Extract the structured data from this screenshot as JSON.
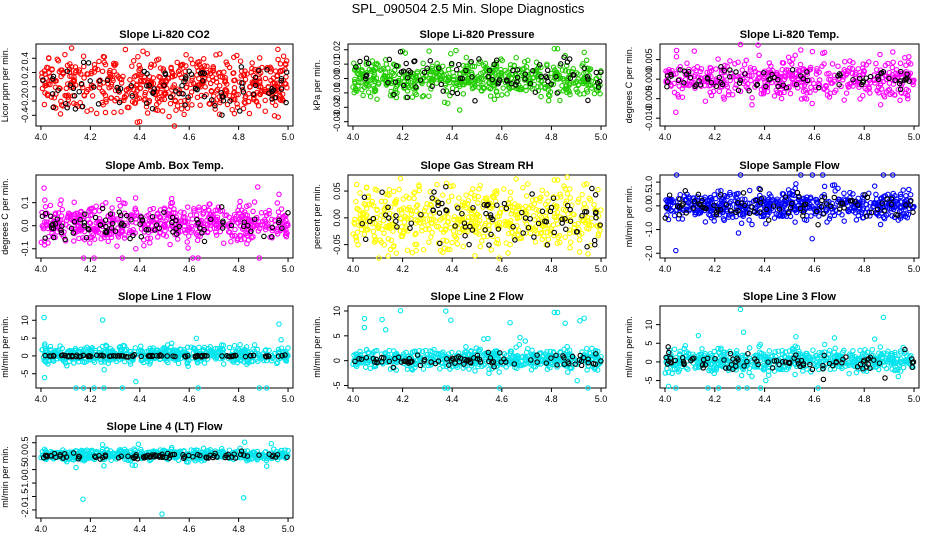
{
  "page": {
    "title": "SPL_090504  2.5 Min. Slope Diagnostics"
  },
  "palette": {
    "black": "#000000",
    "red": "#ff0000",
    "green": "#22cc00",
    "magenta": "#ff00ff",
    "yellow": "#ffff00",
    "blue": "#0000ff",
    "cyan": "#00e5ee"
  },
  "chart_data": [
    {
      "type": "scatter",
      "title": "Slope Li-820 CO2",
      "ylabel": "Licor ppm per min.",
      "xlim": [
        3.98,
        5.02
      ],
      "ylim": [
        -0.55,
        0.6
      ],
      "xticks": [
        "4.0",
        "4.2",
        "4.4",
        "4.6",
        "4.8",
        "5.0"
      ],
      "xtick_values": [
        4.0,
        4.2,
        4.4,
        4.6,
        4.8,
        5.0
      ],
      "yticks": [
        "-0.4",
        "-0.2",
        "0.0",
        "0.2",
        "0.4"
      ],
      "ytick_values": [
        -0.4,
        -0.2,
        0.0,
        0.2,
        0.4
      ],
      "grid": false,
      "series": [
        {
          "color": "#ff0000",
          "cloud": {
            "count": 560,
            "x_range": [
              4.0,
              5.0
            ],
            "center": 0.03,
            "spread": 0.2,
            "outlier_max": 0.52
          }
        },
        {
          "color": "#000000",
          "cloud": {
            "count": 90,
            "x_range": [
              4.0,
              5.0
            ],
            "center": 0.0,
            "spread": 0.17,
            "outlier_max": 0.55
          }
        }
      ]
    },
    {
      "type": "scatter",
      "title": "Slope Li-820 Pressure",
      "ylabel": "kPa per min.",
      "xlim": [
        3.98,
        5.02
      ],
      "ylim": [
        -0.033,
        0.024
      ],
      "xticks": [
        "4.0",
        "4.2",
        "4.4",
        "4.6",
        "4.8",
        "5.0"
      ],
      "xtick_values": [
        4.0,
        4.2,
        4.4,
        4.6,
        4.8,
        5.0
      ],
      "yticks": [
        "-0.03",
        "-0.02",
        "-0.01",
        "0.00",
        "0.01",
        "0.02"
      ],
      "ytick_values": [
        -0.03,
        -0.02,
        -0.01,
        0.0,
        0.01,
        0.02
      ],
      "grid": false,
      "series": [
        {
          "color": "#22cc00",
          "cloud": {
            "count": 560,
            "x_range": [
              4.0,
              5.0
            ],
            "center": 0.0,
            "spread": 0.006,
            "outlier_max": 0.022
          }
        },
        {
          "color": "#000000",
          "cloud": {
            "count": 90,
            "x_range": [
              4.0,
              5.0
            ],
            "center": 0.001,
            "spread": 0.007,
            "outlier_max": 0.018
          }
        }
      ]
    },
    {
      "type": "scatter",
      "title": "Slope Li-820 Temp.",
      "ylabel": "degrees C per min.",
      "xlim": [
        3.98,
        5.02
      ],
      "ylim": [
        -0.012,
        0.009
      ],
      "xticks": [
        "4.0",
        "4.2",
        "4.4",
        "4.6",
        "4.8",
        "5.0"
      ],
      "xtick_values": [
        4.0,
        4.2,
        4.4,
        4.6,
        4.8,
        5.0
      ],
      "yticks": [
        "-0.010",
        "-0.005",
        "0.000",
        "0.005"
      ],
      "ytick_values": [
        -0.01,
        -0.005,
        0.0,
        0.005
      ],
      "grid": false,
      "series": [
        {
          "color": "#ff00ff",
          "cloud": {
            "count": 460,
            "x_range": [
              4.0,
              5.0
            ],
            "center": 0.0,
            "spread": 0.0025,
            "outlier_max": 0.009
          }
        },
        {
          "color": "#000000",
          "cloud": {
            "count": 80,
            "x_range": [
              4.0,
              5.0
            ],
            "center": 0.0,
            "spread": 0.0015,
            "outlier_max": 0.005
          }
        }
      ]
    },
    {
      "type": "scatter",
      "title": "Slope Amb. Box Temp.",
      "ylabel": "degrees C per min.",
      "xlim": [
        3.98,
        5.02
      ],
      "ylim": [
        -0.14,
        0.22
      ],
      "xticks": [
        "4.0",
        "4.2",
        "4.4",
        "4.6",
        "4.8",
        "5.0"
      ],
      "xtick_values": [
        4.0,
        4.2,
        4.4,
        4.6,
        4.8,
        5.0
      ],
      "yticks": [
        "-0.1",
        "0.0",
        "0.1"
      ],
      "ytick_values": [
        -0.1,
        0.0,
        0.1
      ],
      "grid": false,
      "series": [
        {
          "color": "#ff00ff",
          "cloud": {
            "count": 560,
            "x_range": [
              4.0,
              5.0
            ],
            "center": 0.01,
            "spread": 0.04,
            "outlier_max": 0.19
          }
        },
        {
          "color": "#000000",
          "cloud": {
            "count": 90,
            "x_range": [
              4.0,
              5.0
            ],
            "center": 0.0,
            "spread": 0.035,
            "outlier_max": 0.1
          }
        }
      ]
    },
    {
      "type": "scatter",
      "title": "Slope Gas Stream RH",
      "ylabel": "percent per min.",
      "xlim": [
        3.98,
        5.02
      ],
      "ylim": [
        -0.075,
        0.08
      ],
      "xticks": [
        "4.0",
        "4.2",
        "4.4",
        "4.6",
        "4.8",
        "5.0"
      ],
      "xtick_values": [
        4.0,
        4.2,
        4.4,
        4.6,
        4.8,
        5.0
      ],
      "yticks": [
        "-0.05",
        "0.00",
        "0.05"
      ],
      "ytick_values": [
        -0.05,
        0.0,
        0.05
      ],
      "grid": false,
      "series": [
        {
          "color": "#ffff00",
          "cloud": {
            "count": 560,
            "x_range": [
              4.0,
              5.0
            ],
            "center": 0.0,
            "spread": 0.03,
            "outlier_max": 0.075
          }
        },
        {
          "color": "#000000",
          "cloud": {
            "count": 90,
            "x_range": [
              4.0,
              5.0
            ],
            "center": 0.0,
            "spread": 0.025,
            "outlier_max": 0.06
          }
        }
      ]
    },
    {
      "type": "scatter",
      "title": "Slope Sample Flow",
      "ylabel": "ml/min per min.",
      "xlim": [
        3.98,
        5.02
      ],
      "ylim": [
        -2.2,
        1.3
      ],
      "xticks": [
        "4.0",
        "4.2",
        "4.4",
        "4.6",
        "4.8",
        "5.0"
      ],
      "xtick_values": [
        4.0,
        4.2,
        4.4,
        4.6,
        4.8,
        5.0
      ],
      "yticks": [
        "-2.0",
        "-1.0",
        "0.0",
        "0.5",
        "1.0"
      ],
      "ytick_values": [
        -2.0,
        -1.0,
        0.0,
        0.5,
        1.0
      ],
      "grid": false,
      "series": [
        {
          "color": "#0000ff",
          "cloud": {
            "count": 560,
            "x_range": [
              4.0,
              5.0
            ],
            "center": 0.0,
            "spread": 0.3,
            "outlier_max": 2.0
          }
        },
        {
          "color": "#000000",
          "cloud": {
            "count": 90,
            "x_range": [
              4.0,
              5.0
            ],
            "center": 0.0,
            "spread": 0.25,
            "outlier_max": 1.0
          }
        }
      ]
    },
    {
      "type": "scatter",
      "title": "Slope Line 1 Flow",
      "ylabel": "ml/min per min.",
      "xlim": [
        3.98,
        5.02
      ],
      "ylim": [
        -9,
        14
      ],
      "xticks": [
        "4.0",
        "4.2",
        "4.4",
        "4.6",
        "4.8",
        "5.0"
      ],
      "xtick_values": [
        4.0,
        4.2,
        4.4,
        4.6,
        4.8,
        5.0
      ],
      "yticks": [
        "-5",
        "0",
        "5",
        "10"
      ],
      "ytick_values": [
        -5,
        0,
        5,
        10
      ],
      "grid": false,
      "series": [
        {
          "color": "#00e5ee",
          "cloud": {
            "count": 560,
            "x_range": [
              4.0,
              5.0
            ],
            "center": 0.3,
            "spread": 1.2,
            "outlier_max": 13
          }
        },
        {
          "color": "#000000",
          "cloud": {
            "count": 90,
            "x_range": [
              4.0,
              5.0
            ],
            "center": 0.0,
            "spread": 0.15,
            "outlier_max": 0.6
          }
        }
      ]
    },
    {
      "type": "scatter",
      "title": "Slope Line 2 Flow",
      "ylabel": "ml/min per min.",
      "xlim": [
        3.98,
        5.02
      ],
      "ylim": [
        -5.5,
        11
      ],
      "xticks": [
        "4.0",
        "4.2",
        "4.4",
        "4.6",
        "4.8",
        "5.0"
      ],
      "xtick_values": [
        4.0,
        4.2,
        4.4,
        4.6,
        4.8,
        5.0
      ],
      "yticks": [
        "-5",
        "0",
        "5",
        "10"
      ],
      "ytick_values": [
        -5,
        0,
        5,
        10
      ],
      "grid": false,
      "series": [
        {
          "color": "#00e5ee",
          "cloud": {
            "count": 560,
            "x_range": [
              4.0,
              5.0
            ],
            "center": 0.3,
            "spread": 1.0,
            "outlier_max": 10
          }
        },
        {
          "color": "#000000",
          "cloud": {
            "count": 90,
            "x_range": [
              4.0,
              5.0
            ],
            "center": 0.0,
            "spread": 0.6,
            "outlier_max": 2.0
          }
        }
      ]
    },
    {
      "type": "scatter",
      "title": "Slope Line 3 Flow",
      "ylabel": "ml/min per min.",
      "xlim": [
        3.98,
        5.02
      ],
      "ylim": [
        -7,
        15
      ],
      "xticks": [
        "4.0",
        "4.2",
        "4.4",
        "4.6",
        "4.8",
        "5.0"
      ],
      "xtick_values": [
        4.0,
        4.2,
        4.4,
        4.6,
        4.8,
        5.0
      ],
      "yticks": [
        "-5",
        "0",
        "5",
        "10"
      ],
      "ytick_values": [
        -5,
        0,
        5,
        10
      ],
      "grid": false,
      "series": [
        {
          "color": "#00e5ee",
          "cloud": {
            "count": 560,
            "x_range": [
              4.0,
              5.0
            ],
            "center": 0.3,
            "spread": 1.6,
            "outlier_max": 14
          }
        },
        {
          "color": "#000000",
          "cloud": {
            "count": 90,
            "x_range": [
              4.0,
              5.0
            ],
            "center": 0.0,
            "spread": 1.0,
            "outlier_max": 5
          }
        }
      ]
    },
    {
      "type": "scatter",
      "title": "Slope Line 4 (LT) Flow",
      "ylabel": "ml/min per min.",
      "xlim": [
        3.98,
        5.02
      ],
      "ylim": [
        -2.3,
        0.75
      ],
      "xticks": [
        "4.0",
        "4.2",
        "4.4",
        "4.6",
        "4.8",
        "5.0"
      ],
      "xtick_values": [
        4.0,
        4.2,
        4.4,
        4.6,
        4.8,
        5.0
      ],
      "yticks": [
        "-2.0",
        "-1.5",
        "-1.0",
        "-0.5",
        "0.0",
        "0.5"
      ],
      "ytick_values": [
        -2.0,
        -1.5,
        -1.0,
        -0.5,
        0.0,
        0.5
      ],
      "grid": false,
      "series": [
        {
          "color": "#00e5ee",
          "cloud": {
            "count": 560,
            "x_range": [
              4.0,
              5.0
            ],
            "center": 0.05,
            "spread": 0.1,
            "outlier_max": 0.5
          }
        },
        {
          "color": "#000000",
          "cloud": {
            "count": 90,
            "x_range": [
              4.0,
              5.0
            ],
            "center": 0.0,
            "spread": 0.05,
            "outlier_max": 0.2
          }
        }
      ],
      "extra_points": [
        {
          "x": 4.17,
          "y": -1.6,
          "color": "#00e5ee"
        },
        {
          "x": 4.82,
          "y": -1.55,
          "color": "#00e5ee"
        },
        {
          "x": 4.49,
          "y": -2.15,
          "color": "#00e5ee"
        }
      ]
    }
  ]
}
